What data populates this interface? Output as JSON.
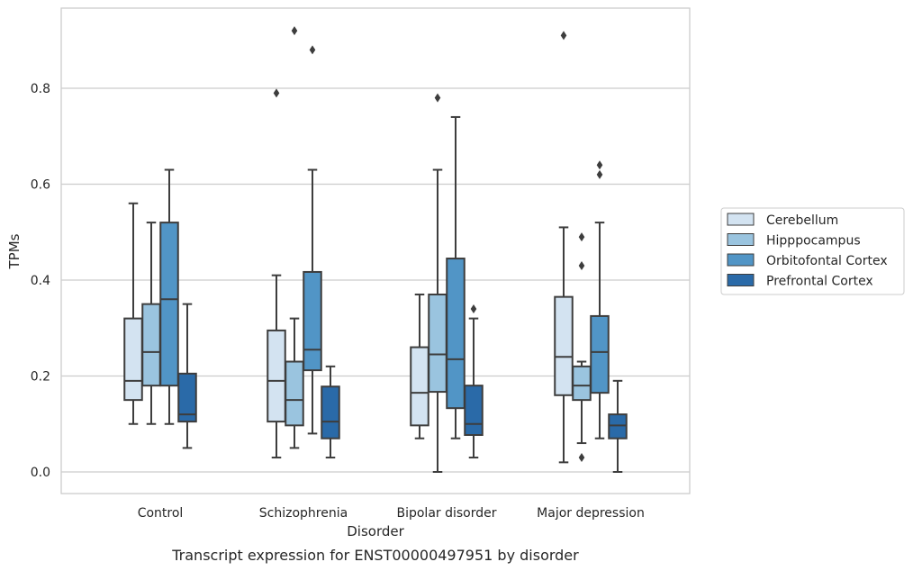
{
  "chart_data": {
    "type": "box",
    "title": "",
    "xlabel": "Disorder",
    "ylabel": "TPMs",
    "caption": "Transcript expression for ENST00000497951 by disorder",
    "categories": [
      "Control",
      "Schizophrenia",
      "Bipolar disorder",
      "Major depression"
    ],
    "ylim": [
      -0.045,
      0.97
    ],
    "yticks": [
      0.0,
      0.2,
      0.4,
      0.6,
      0.8
    ],
    "ytick_labels": [
      "0.0",
      "0.2",
      "0.4",
      "0.6",
      "0.8"
    ],
    "grid": "horizontal",
    "legend_position": "right",
    "series": [
      {
        "name": "Cerebellum",
        "color": "#d3e3f1",
        "boxes": [
          {
            "whislo": 0.1,
            "q1": 0.15,
            "med": 0.19,
            "q3": 0.32,
            "whishi": 0.56,
            "fliers": []
          },
          {
            "whislo": 0.03,
            "q1": 0.105,
            "med": 0.19,
            "q3": 0.295,
            "whishi": 0.41,
            "fliers": [
              0.79
            ]
          },
          {
            "whislo": 0.07,
            "q1": 0.097,
            "med": 0.165,
            "q3": 0.26,
            "whishi": 0.37,
            "fliers": []
          },
          {
            "whislo": 0.02,
            "q1": 0.16,
            "med": 0.24,
            "q3": 0.365,
            "whishi": 0.51,
            "fliers": [
              0.91
            ]
          }
        ]
      },
      {
        "name": "Hipppocampus",
        "color": "#9ac4df",
        "boxes": [
          {
            "whislo": 0.1,
            "q1": 0.18,
            "med": 0.25,
            "q3": 0.35,
            "whishi": 0.52,
            "fliers": []
          },
          {
            "whislo": 0.05,
            "q1": 0.097,
            "med": 0.15,
            "q3": 0.23,
            "whishi": 0.32,
            "fliers": [
              0.92
            ]
          },
          {
            "whislo": 0.0,
            "q1": 0.167,
            "med": 0.245,
            "q3": 0.37,
            "whishi": 0.63,
            "fliers": [
              0.78
            ]
          },
          {
            "whislo": 0.06,
            "q1": 0.15,
            "med": 0.18,
            "q3": 0.22,
            "whishi": 0.23,
            "fliers": [
              0.03,
              0.43,
              0.49
            ]
          }
        ]
      },
      {
        "name": "Orbitofontal Cortex",
        "color": "#5195c6",
        "boxes": [
          {
            "whislo": 0.1,
            "q1": 0.18,
            "med": 0.36,
            "q3": 0.52,
            "whishi": 0.63,
            "fliers": []
          },
          {
            "whislo": 0.08,
            "q1": 0.212,
            "med": 0.255,
            "q3": 0.417,
            "whishi": 0.63,
            "fliers": [
              0.88
            ]
          },
          {
            "whislo": 0.07,
            "q1": 0.133,
            "med": 0.235,
            "q3": 0.445,
            "whishi": 0.74,
            "fliers": []
          },
          {
            "whislo": 0.07,
            "q1": 0.165,
            "med": 0.25,
            "q3": 0.325,
            "whishi": 0.52,
            "fliers": [
              0.62,
              0.64
            ]
          }
        ]
      },
      {
        "name": "Prefrontal Cortex",
        "color": "#2a6aa8",
        "boxes": [
          {
            "whislo": 0.05,
            "q1": 0.105,
            "med": 0.12,
            "q3": 0.205,
            "whishi": 0.35,
            "fliers": []
          },
          {
            "whislo": 0.03,
            "q1": 0.07,
            "med": 0.105,
            "q3": 0.178,
            "whishi": 0.22,
            "fliers": []
          },
          {
            "whislo": 0.03,
            "q1": 0.077,
            "med": 0.1,
            "q3": 0.18,
            "whishi": 0.32,
            "fliers": [
              0.34
            ]
          },
          {
            "whislo": 0.0,
            "q1": 0.07,
            "med": 0.097,
            "q3": 0.12,
            "whishi": 0.19,
            "fliers": []
          }
        ]
      }
    ]
  }
}
